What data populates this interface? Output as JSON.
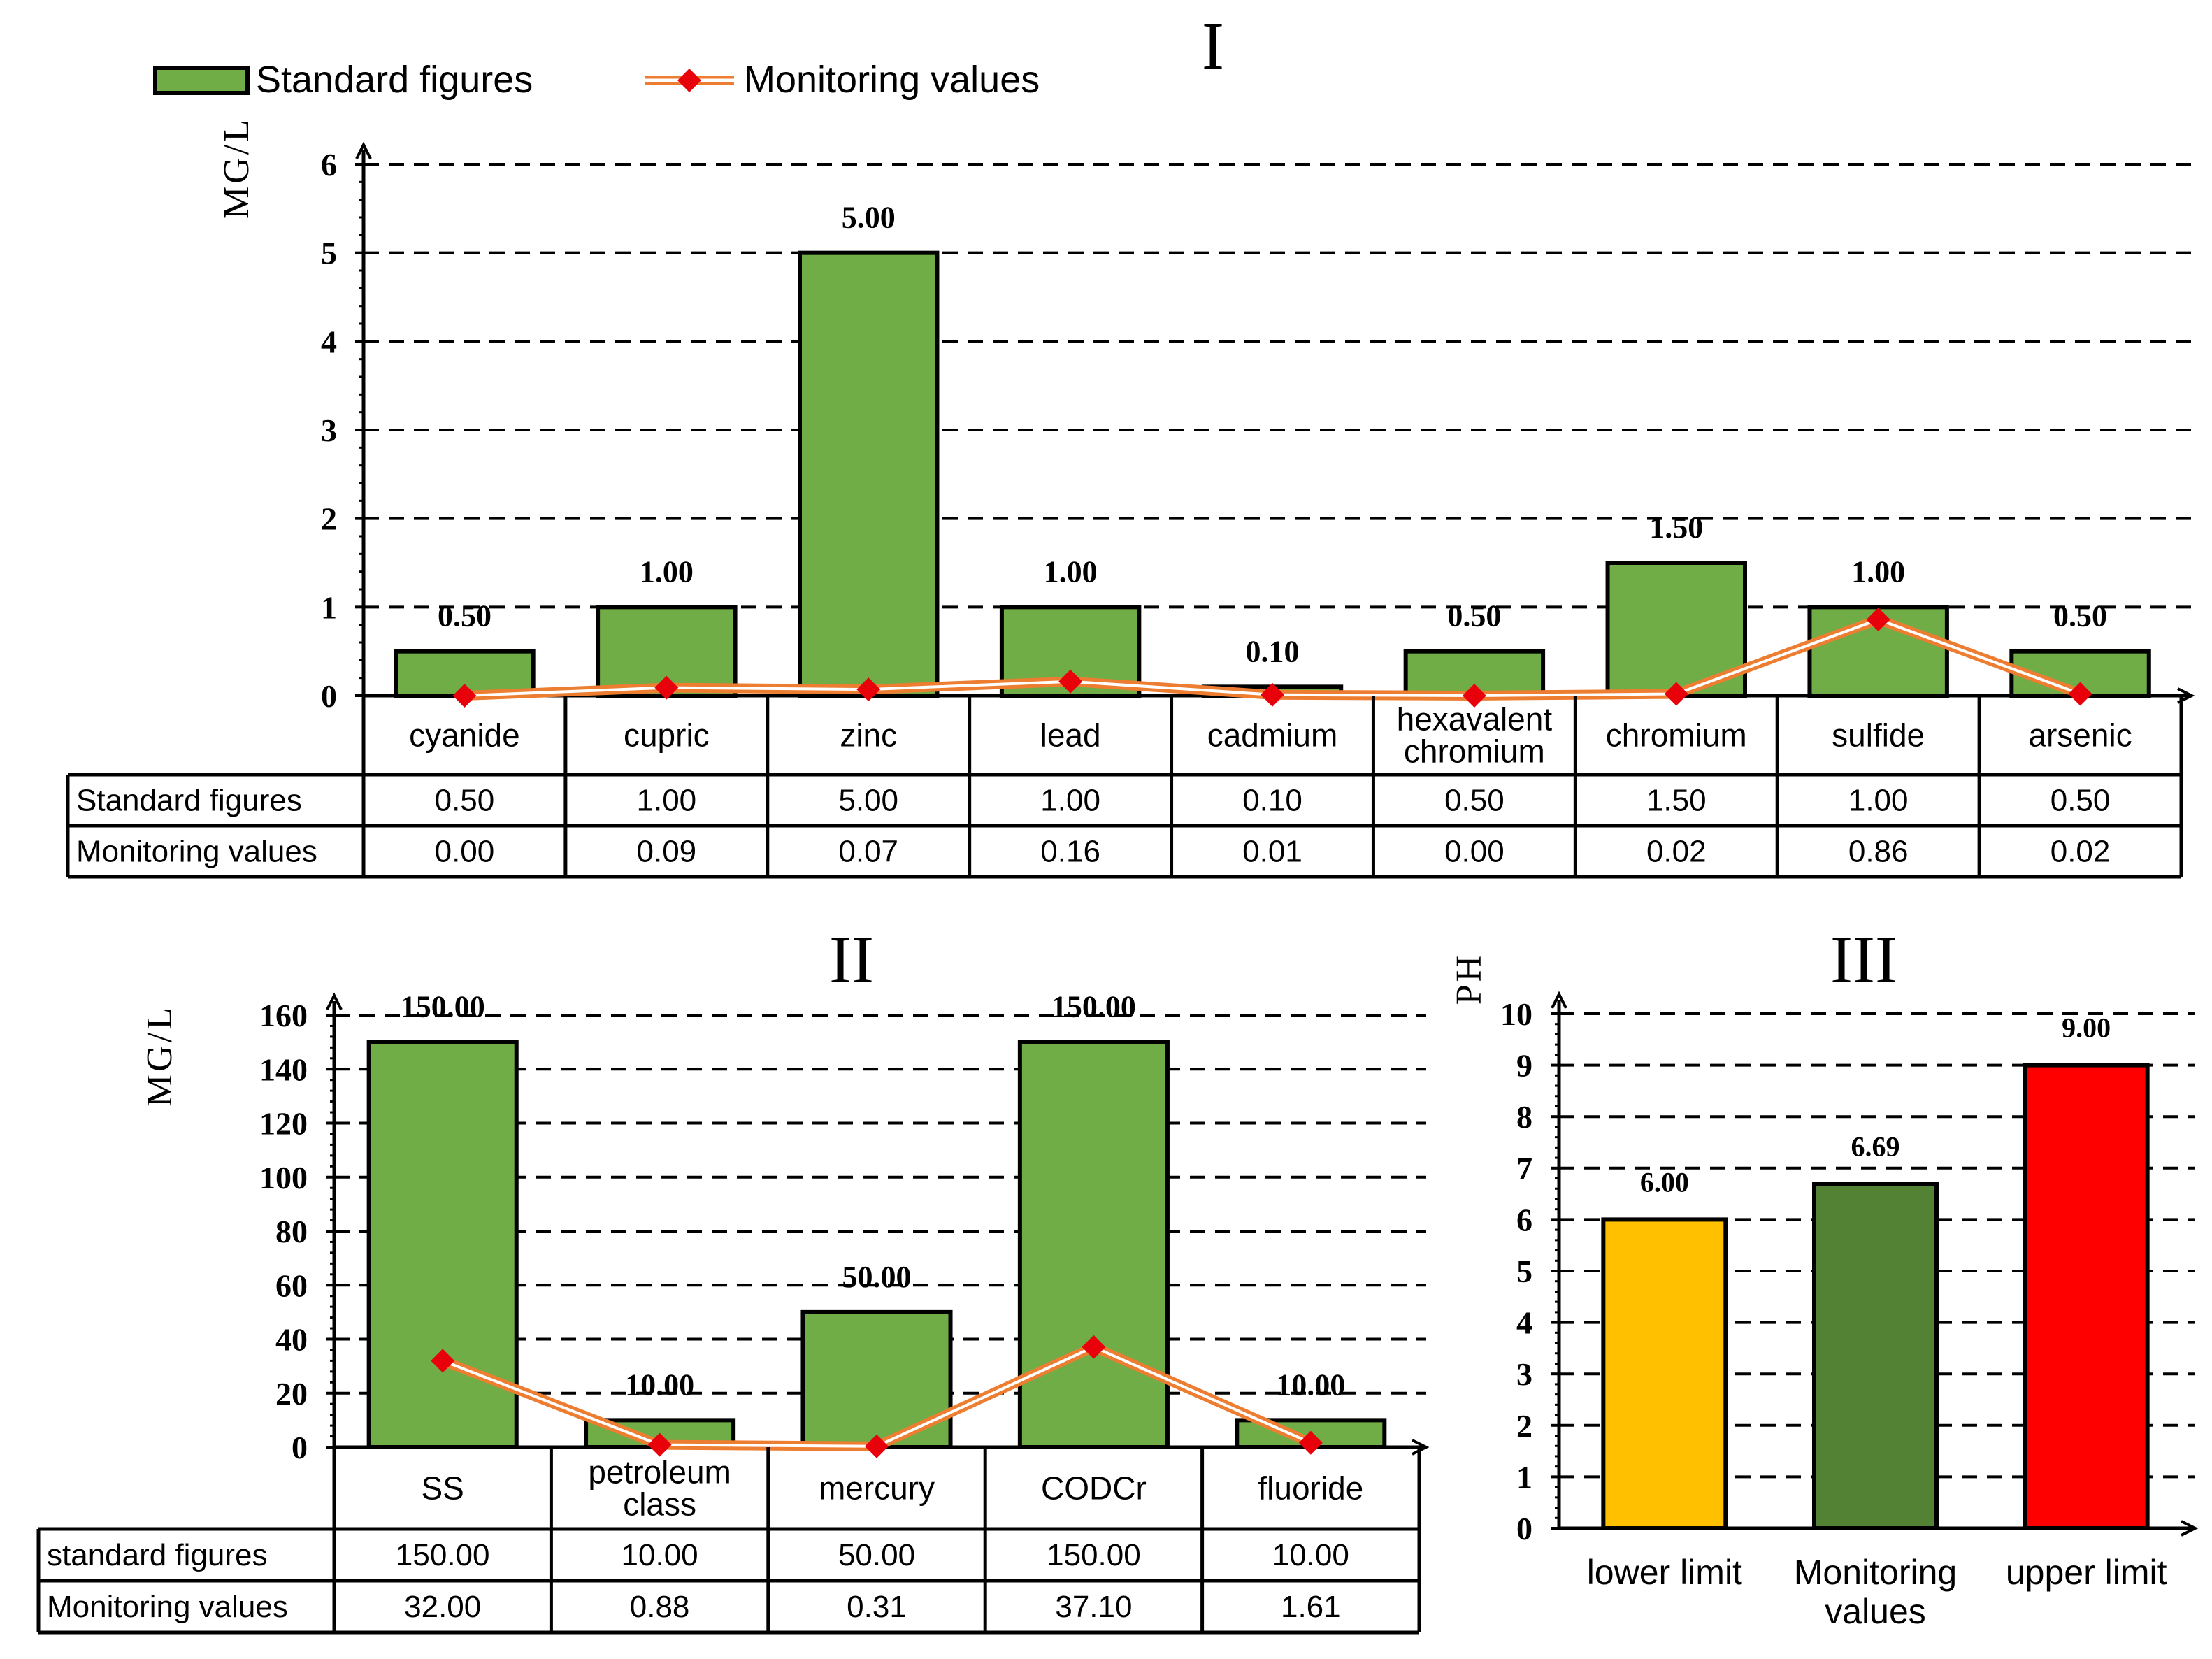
{
  "legend": {
    "bar_label": "Standard figures",
    "line_label": "Monitoring values"
  },
  "colors": {
    "bar_green": "#70ad47",
    "line_orange": "#ed7d31",
    "marker_red": "#e8000b",
    "lower_limit": "#ffc000",
    "monitoring": "#548235",
    "upper_limit": "#ff0000"
  },
  "chart_data": [
    {
      "id": "I",
      "type": "bar",
      "title": "I",
      "ylabel": "MG/L",
      "ylim": [
        0,
        6
      ],
      "yticks": [
        0,
        1,
        2,
        3,
        4,
        5,
        6
      ],
      "grid": true,
      "categories": [
        "cyanide",
        "cupric",
        "zinc",
        "lead",
        "cadmium",
        "hexavalent chromium",
        "chromium",
        "sulfide",
        "arsenic"
      ],
      "series": [
        {
          "name": "Standard figures",
          "kind": "bar",
          "values": [
            0.5,
            1.0,
            5.0,
            1.0,
            0.1,
            0.5,
            1.5,
            1.0,
            0.5
          ]
        },
        {
          "name": "Monitoring values",
          "kind": "line",
          "values": [
            0.0,
            0.09,
            0.07,
            0.16,
            0.01,
            0.0,
            0.02,
            0.86,
            0.02
          ]
        }
      ],
      "table": {
        "rows": [
          {
            "label": "Standard figures",
            "values": [
              "0.50",
              "1.00",
              "5.00",
              "1.00",
              "0.10",
              "0.50",
              "1.50",
              "1.00",
              "0.50"
            ]
          },
          {
            "label": "Monitoring values",
            "values": [
              "0.00",
              "0.09",
              "0.07",
              "0.16",
              "0.01",
              "0.00",
              "0.02",
              "0.86",
              "0.02"
            ]
          }
        ]
      },
      "data_labels": [
        "0.50",
        "1.00",
        "5.00",
        "1.00",
        "0.10",
        "0.50",
        "1.50",
        "1.00",
        "0.50"
      ]
    },
    {
      "id": "II",
      "type": "bar",
      "title": "II",
      "ylabel": "MG/L",
      "ylim": [
        0,
        160
      ],
      "yticks": [
        0,
        20,
        40,
        60,
        80,
        100,
        120,
        140,
        160
      ],
      "grid": true,
      "categories": [
        "SS",
        "petroleum class",
        "mercury",
        "CODCr",
        "fluoride"
      ],
      "series": [
        {
          "name": "standard figures",
          "kind": "bar",
          "values": [
            150.0,
            10.0,
            50.0,
            150.0,
            10.0
          ]
        },
        {
          "name": "Monitoring values",
          "kind": "line",
          "values": [
            32.0,
            0.88,
            0.31,
            37.1,
            1.61
          ]
        }
      ],
      "table": {
        "rows": [
          {
            "label": "standard figures",
            "values": [
              "150.00",
              "10.00",
              "50.00",
              "150.00",
              "10.00"
            ]
          },
          {
            "label": "Monitoring values",
            "values": [
              "32.00",
              "0.88",
              "0.31",
              "37.10",
              "1.61"
            ]
          }
        ]
      },
      "data_labels": [
        "150.00",
        "10.00",
        "50.00",
        "150.00",
        "10.00"
      ]
    },
    {
      "id": "III",
      "type": "bar",
      "title": "III",
      "ylabel": "PH",
      "ylim": [
        0,
        10
      ],
      "yticks": [
        0,
        1,
        2,
        3,
        4,
        5,
        6,
        7,
        8,
        9,
        10
      ],
      "grid": true,
      "categories": [
        "lower limit",
        "Monitoring values",
        "upper limit"
      ],
      "series": [
        {
          "name": "PH",
          "kind": "bar",
          "values": [
            6.0,
            6.69,
            9.0
          ]
        }
      ],
      "bar_colors": [
        "#ffc000",
        "#548235",
        "#ff0000"
      ],
      "data_labels": [
        "6.00",
        "6.69",
        "9.00"
      ]
    }
  ]
}
